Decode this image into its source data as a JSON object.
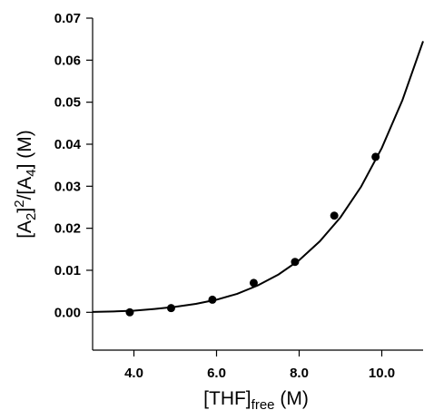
{
  "chart_data": {
    "type": "scatter",
    "title": "",
    "xlabel": {
      "main": "[THF]",
      "sub": "free",
      "unit": " (M)"
    },
    "ylabel": {
      "p1": "[A",
      "s1": "2",
      "p2": "]",
      "sup": "2",
      "p3": "/[A",
      "s2": "4",
      "p4": "] (M)"
    },
    "xlim": [
      3.0,
      11.0
    ],
    "ylim": [
      -0.009,
      0.07
    ],
    "x_ticks": [
      4.0,
      6.0,
      8.0,
      10.0
    ],
    "x_tick_labels": [
      "4.0",
      "6.0",
      "8.0",
      "10.0"
    ],
    "y_ticks": [
      0.0,
      0.01,
      0.02,
      0.03,
      0.04,
      0.05,
      0.06,
      0.07
    ],
    "y_tick_labels": [
      "0.00",
      "0.01",
      "0.02",
      "0.03",
      "0.04",
      "0.05",
      "0.06",
      "0.07"
    ],
    "grid": false,
    "legend": "none",
    "series": [
      {
        "kind": "points",
        "x": [
          3.9,
          4.9,
          5.9,
          6.9,
          7.9,
          8.85,
          9.85
        ],
        "y": [
          0.0,
          0.001,
          0.003,
          0.007,
          0.012,
          0.023,
          0.037
        ],
        "color": "#000000"
      },
      {
        "kind": "fit-curve",
        "x": [
          3.0,
          3.5,
          4.0,
          4.5,
          5.0,
          5.5,
          6.0,
          6.5,
          7.0,
          7.5,
          8.0,
          8.5,
          9.0,
          9.5,
          10.0,
          10.5,
          11.0
        ],
        "y": [
          0.0001,
          0.0002,
          0.0004,
          0.0008,
          0.0013,
          0.002,
          0.003,
          0.0044,
          0.0064,
          0.009,
          0.0124,
          0.0169,
          0.0226,
          0.0299,
          0.0391,
          0.0505,
          0.0645
        ],
        "color": "#000000"
      }
    ]
  }
}
